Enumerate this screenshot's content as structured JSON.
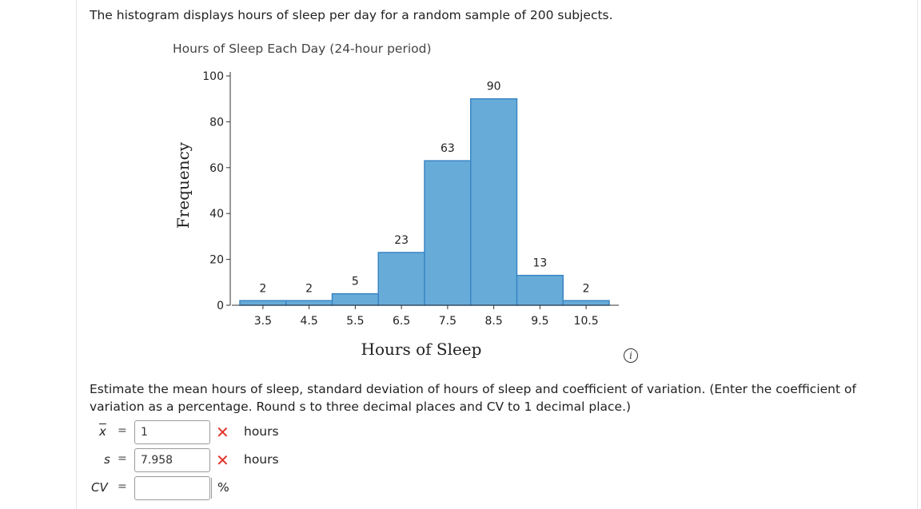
{
  "intro_text": "The histogram displays hours of sleep per day for a random sample of 200 subjects.",
  "chart_data": {
    "type": "bar",
    "title": "Hours of Sleep Each Day (24-hour period)",
    "xlabel": "Hours of Sleep",
    "ylabel": "Frequency",
    "bin_edges": [
      3.5,
      4.5,
      5.5,
      6.5,
      7.5,
      8.5,
      9.5,
      10.5
    ],
    "bin_starts": [
      3,
      4,
      5,
      6,
      7,
      8,
      9,
      10
    ],
    "bin_width": 1,
    "values": [
      2,
      2,
      5,
      23,
      63,
      90,
      13,
      2
    ],
    "ylim": [
      0,
      100
    ],
    "yticks": [
      0,
      20,
      40,
      60,
      80,
      100
    ],
    "bar_color": "#67acd9",
    "bar_edge_color": "#3a85c4",
    "grid": false
  },
  "question_text": "Estimate the mean hours of sleep, standard deviation of hours of sleep and coefficient of variation. (Enter the coefficient of variation as a percentage. Round s to three decimal places and CV to 1 decimal place.)",
  "answers": [
    {
      "var": "x",
      "value": "1",
      "unit": "hours",
      "status": "incorrect"
    },
    {
      "var": "s",
      "value": "7.958",
      "unit": "hours",
      "status": "incorrect"
    },
    {
      "var": "CV",
      "value": "",
      "unit": "%",
      "status": "none"
    }
  ],
  "equals": "=",
  "incorrect_mark": "✕",
  "info_icon": "info-icon",
  "colors": {
    "incorrect": "#e0332a"
  }
}
